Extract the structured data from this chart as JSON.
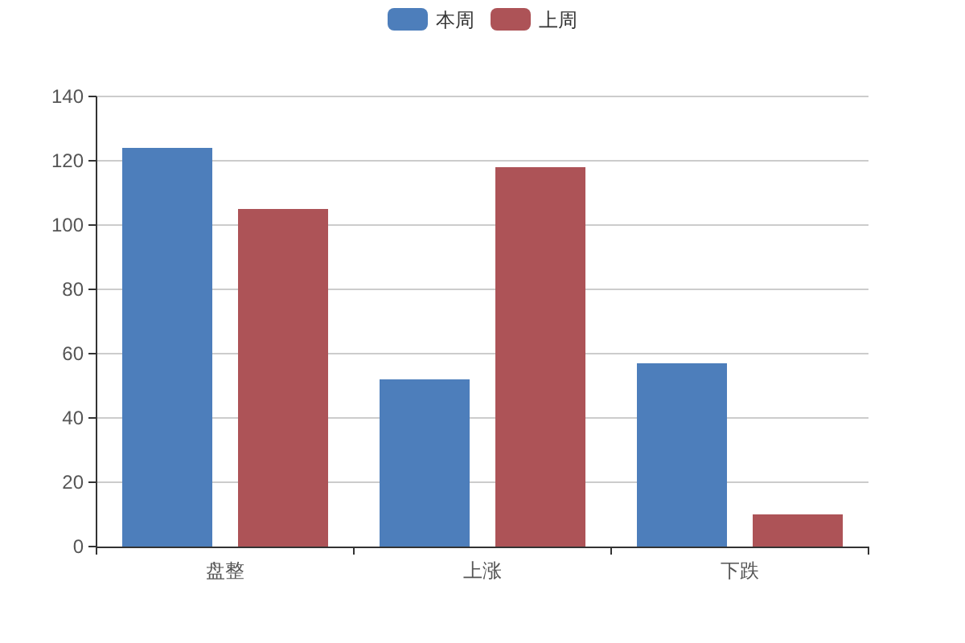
{
  "chart_data": {
    "type": "bar",
    "categories": [
      "盘整",
      "上涨",
      "下跌"
    ],
    "series": [
      {
        "name": "本周",
        "color": "#4d7ebb",
        "values": [
          124,
          52,
          57
        ]
      },
      {
        "name": "上周",
        "color": "#ad5357",
        "values": [
          105,
          118,
          10
        ]
      }
    ],
    "ylim": [
      0,
      140
    ],
    "yticks": [
      0,
      20,
      40,
      60,
      80,
      100,
      120,
      140
    ],
    "grid": "y",
    "legend": "top"
  }
}
